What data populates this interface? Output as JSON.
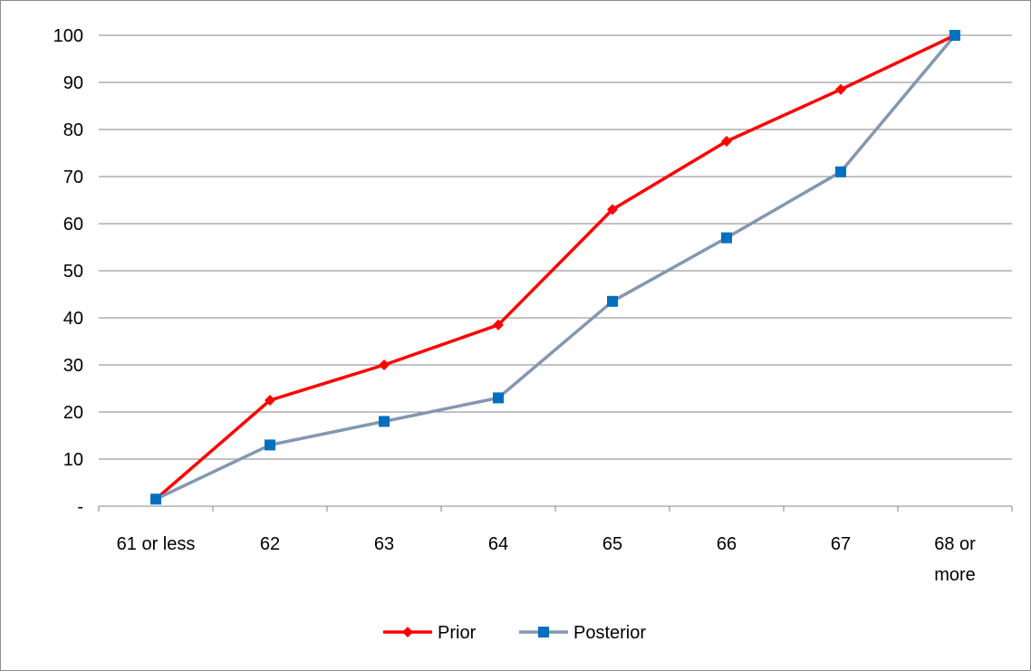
{
  "chart_data": {
    "type": "line",
    "categories": [
      "61 or less",
      "62",
      "63",
      "64",
      "65",
      "66",
      "67",
      "68  or more"
    ],
    "category_lines": [
      [
        "61 or less"
      ],
      [
        "62"
      ],
      [
        "63"
      ],
      [
        "64"
      ],
      [
        "65"
      ],
      [
        "66"
      ],
      [
        "67"
      ],
      [
        "68  or",
        "more"
      ]
    ],
    "y_tick_labels": [
      "-",
      "10",
      "20",
      "30",
      "40",
      "50",
      "60",
      "70",
      "80",
      "90",
      "100"
    ],
    "y_ticks": [
      0,
      10,
      20,
      30,
      40,
      50,
      60,
      70,
      80,
      90,
      100
    ],
    "ylim": [
      0,
      100
    ],
    "grid": true,
    "legend_position": "bottom",
    "series": [
      {
        "name": "Prior",
        "color": "#ff0000",
        "marker": "diamond",
        "values": [
          1.5,
          22.5,
          30,
          38.5,
          63,
          77.5,
          88.5,
          100
        ]
      },
      {
        "name": "Posterior",
        "color": "#8497b0",
        "marker_color": "#0070c0",
        "marker": "square",
        "values": [
          1.5,
          13,
          18,
          23,
          43.5,
          57,
          71,
          100
        ]
      }
    ]
  }
}
